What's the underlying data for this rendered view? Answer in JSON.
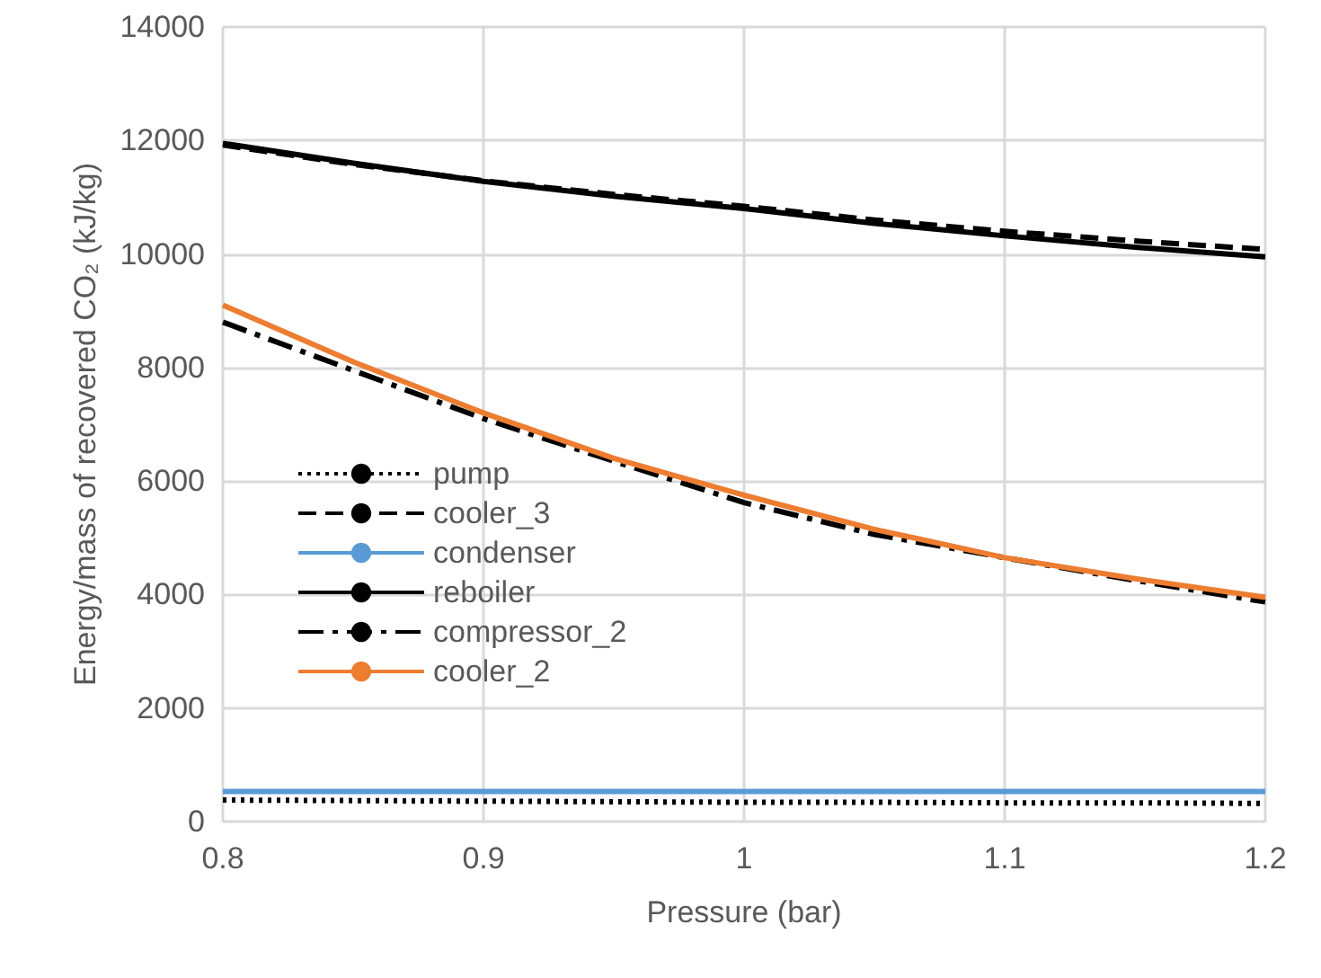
{
  "chart_data": {
    "type": "line",
    "xlabel": "Pressure (bar)",
    "ylabel": "Energy/mass of recovered CO₂ (kJ/kg)",
    "x": [
      0.8,
      0.85,
      0.9,
      0.95,
      1.0,
      1.05,
      1.1,
      1.15,
      1.2
    ],
    "xlim": [
      0.8,
      1.2
    ],
    "xticks": [
      0.8,
      0.9,
      1,
      1.1,
      1.2
    ],
    "ylim": [
      0,
      14000
    ],
    "yticks": [
      0,
      2000,
      4000,
      6000,
      8000,
      10000,
      12000,
      14000
    ],
    "grid": true,
    "legend": "left",
    "marker": "none",
    "series": [
      {
        "name": "pump",
        "color": "#000000",
        "line_style": "dotted",
        "values": [
          380,
          370,
          360,
          350,
          340,
          340,
          330,
          330,
          320
        ]
      },
      {
        "name": "cooler_3",
        "color": "#000000",
        "line_style": "dashed",
        "values": [
          11920,
          11580,
          11290,
          11050,
          10840,
          10600,
          10400,
          10230,
          10080
        ]
      },
      {
        "name": "condenser",
        "color": "#5b9bd5",
        "line_style": "solid",
        "values": [
          530,
          530,
          530,
          530,
          530,
          530,
          530,
          530,
          530
        ]
      },
      {
        "name": "reboiler",
        "color": "#000000",
        "line_style": "solid",
        "values": [
          11950,
          11600,
          11280,
          11020,
          10800,
          10540,
          10320,
          10120,
          9950
        ]
      },
      {
        "name": "compressor_2",
        "color": "#000000",
        "line_style": "dashdot",
        "values": [
          8800,
          7950,
          7100,
          6350,
          5620,
          5060,
          4650,
          4250,
          3870
        ]
      },
      {
        "name": "cooler_2",
        "color": "#ed7d31",
        "line_style": "solid",
        "values": [
          9100,
          8100,
          7200,
          6400,
          5750,
          5150,
          4650,
          4280,
          3950
        ]
      }
    ]
  }
}
